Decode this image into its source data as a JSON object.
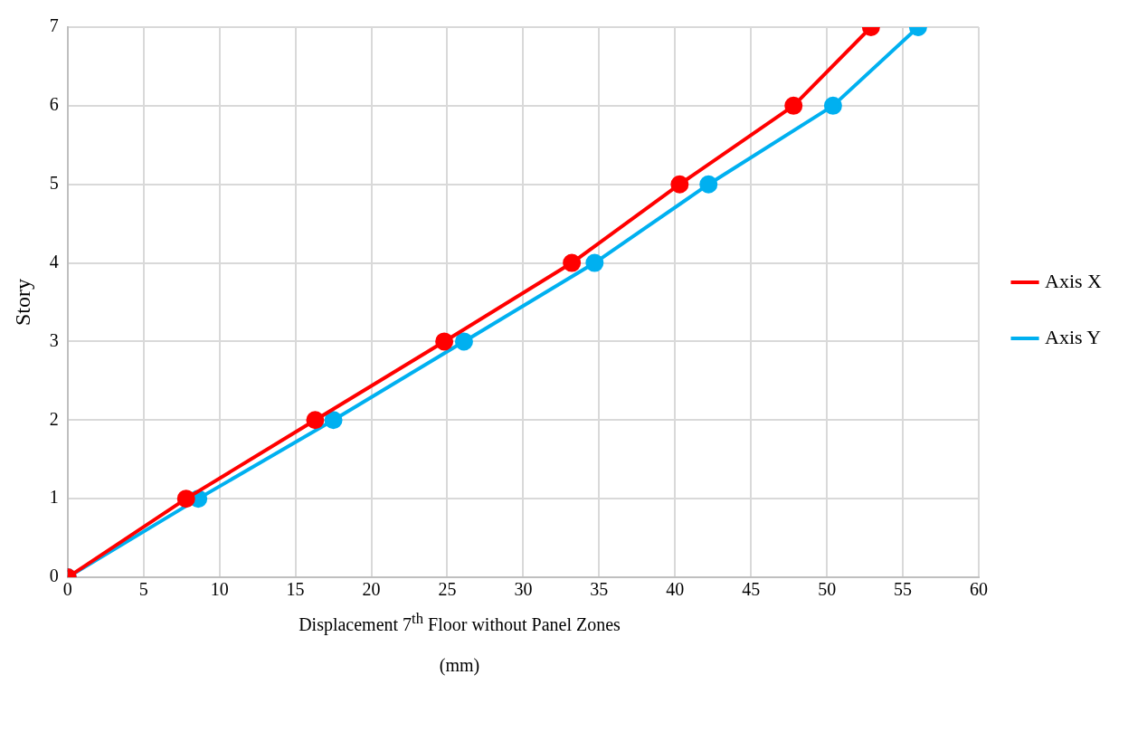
{
  "chart_data": {
    "type": "line",
    "xlabel": "Displacement 7$^{th}$ Floor without Panel Zones\n(mm)",
    "ylabel": "Story",
    "series": [
      {
        "name": "Axis X",
        "color": "#ff0000",
        "x": [
          0,
          7.8,
          16.3,
          24.8,
          33.2,
          40.3,
          47.8,
          52.9
        ],
        "values": [
          0,
          1,
          2,
          3,
          4,
          5,
          6,
          7
        ]
      },
      {
        "name": "Axis Y",
        "color": "#00b0f0",
        "x": [
          0,
          8.6,
          17.5,
          26.1,
          34.7,
          42.2,
          50.4,
          56.0
        ],
        "values": [
          0,
          1,
          2,
          3,
          4,
          5,
          6,
          7
        ]
      }
    ],
    "xlim": [
      0,
      60
    ],
    "xticks": [
      0,
      5,
      10,
      15,
      20,
      25,
      30,
      35,
      40,
      45,
      50,
      55,
      60
    ],
    "ylim": [
      0,
      7
    ],
    "yticks": [
      0,
      1,
      2,
      3,
      4,
      5,
      6,
      7
    ],
    "grid": true,
    "legend": "right",
    "marker": "circle",
    "line_style": "solid"
  }
}
